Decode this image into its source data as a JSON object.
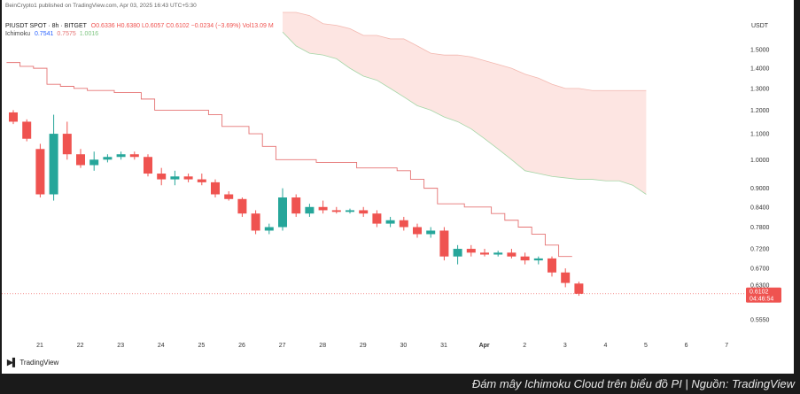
{
  "header": {
    "published": "BeinCrypto1 published on TradingView.com, Apr 03, 2025 16:43 UTC+5:30",
    "symbol": "PIUSDT SPOT · 8h · BITGET",
    "ohlc": "O0.6336  H0.6380  L0.6057  C0.6102  −0.0234 (−3.69%)  Vol13.09 M",
    "indicator_name": "Ichimoku",
    "indicator_vals": [
      "0.7541",
      "0.7575",
      "1.0016"
    ]
  },
  "currency": "USDT",
  "caption": "Đám mây Ichimoku Cloud trên biểu đồ PI | Nguồn: TradingView",
  "logo_text": "TradingView",
  "colors": {
    "up": "#26a69a",
    "down": "#ef5350",
    "baseline": "#e57373",
    "cloud": "#fde5e2",
    "cloud_lower": "#a5d6a7",
    "price_tag": "#ef5350"
  },
  "chart_data": {
    "type": "candlestick",
    "title": "PIUSDT SPOT · 8h · BITGET",
    "yscale": "log",
    "ylim": [
      0.53,
      1.72
    ],
    "y_ticks": [
      "1.5000",
      "1.4000",
      "1.3000",
      "1.2000",
      "1.1000",
      "1.0000",
      "0.9000",
      "0.8400",
      "0.7800",
      "0.7200",
      "0.6700",
      "0.6300",
      "0.5550"
    ],
    "x_ticks": [
      "21",
      "22",
      "23",
      "24",
      "25",
      "26",
      "27",
      "28",
      "29",
      "30",
      "31",
      "Apr",
      "2",
      "3",
      "4",
      "5",
      "6",
      "7"
    ],
    "last_price": "0.6102",
    "countdown": "04:46:54",
    "candles": [
      [
        1.19,
        1.2,
        1.14,
        1.15
      ],
      [
        1.15,
        1.16,
        1.07,
        1.08
      ],
      [
        1.04,
        1.06,
        0.87,
        0.88
      ],
      [
        0.88,
        1.18,
        0.86,
        1.1
      ],
      [
        1.1,
        1.15,
        1.0,
        1.02
      ],
      [
        1.02,
        1.04,
        0.97,
        0.98
      ],
      [
        0.98,
        1.03,
        0.96,
        1.0
      ],
      [
        1.0,
        1.02,
        0.99,
        1.01
      ],
      [
        1.01,
        1.03,
        1.0,
        1.02
      ],
      [
        1.02,
        1.03,
        1.0,
        1.01
      ],
      [
        1.01,
        1.02,
        0.94,
        0.95
      ],
      [
        0.95,
        0.97,
        0.91,
        0.93
      ],
      [
        0.93,
        0.96,
        0.91,
        0.94
      ],
      [
        0.94,
        0.95,
        0.92,
        0.93
      ],
      [
        0.93,
        0.95,
        0.91,
        0.92
      ],
      [
        0.92,
        0.93,
        0.87,
        0.88
      ],
      [
        0.88,
        0.89,
        0.86,
        0.865
      ],
      [
        0.865,
        0.87,
        0.81,
        0.82
      ],
      [
        0.82,
        0.83,
        0.76,
        0.77
      ],
      [
        0.77,
        0.79,
        0.76,
        0.78
      ],
      [
        0.78,
        0.9,
        0.77,
        0.87
      ],
      [
        0.87,
        0.88,
        0.81,
        0.82
      ],
      [
        0.82,
        0.85,
        0.81,
        0.84
      ],
      [
        0.84,
        0.86,
        0.82,
        0.83
      ],
      [
        0.83,
        0.84,
        0.82,
        0.825
      ],
      [
        0.825,
        0.835,
        0.82,
        0.83
      ],
      [
        0.83,
        0.84,
        0.81,
        0.82
      ],
      [
        0.82,
        0.83,
        0.78,
        0.79
      ],
      [
        0.79,
        0.81,
        0.78,
        0.8
      ],
      [
        0.8,
        0.81,
        0.77,
        0.78
      ],
      [
        0.78,
        0.79,
        0.75,
        0.76
      ],
      [
        0.76,
        0.78,
        0.75,
        0.77
      ],
      [
        0.77,
        0.78,
        0.69,
        0.7
      ],
      [
        0.7,
        0.73,
        0.68,
        0.72
      ],
      [
        0.72,
        0.73,
        0.7,
        0.71
      ],
      [
        0.71,
        0.72,
        0.7,
        0.705
      ],
      [
        0.705,
        0.715,
        0.7,
        0.71
      ],
      [
        0.71,
        0.72,
        0.695,
        0.7
      ],
      [
        0.7,
        0.71,
        0.68,
        0.69
      ],
      [
        0.69,
        0.7,
        0.68,
        0.695
      ],
      [
        0.695,
        0.7,
        0.65,
        0.66
      ],
      [
        0.66,
        0.67,
        0.625,
        0.635
      ],
      [
        0.6336,
        0.638,
        0.6057,
        0.6102
      ]
    ],
    "baseline": [
      1.43,
      1.41,
      1.4,
      1.32,
      1.31,
      1.3,
      1.29,
      1.29,
      1.28,
      1.28,
      1.25,
      1.2,
      1.2,
      1.2,
      1.2,
      1.18,
      1.13,
      1.13,
      1.1,
      1.05,
      1.0,
      1.0,
      1.0,
      0.99,
      0.99,
      0.99,
      0.97,
      0.97,
      0.97,
      0.96,
      0.93,
      0.9,
      0.85,
      0.85,
      0.84,
      0.84,
      0.82,
      0.8,
      0.78,
      0.76,
      0.73,
      0.7
    ],
    "cloud_upper": [
      1.72,
      1.72,
      1.7,
      1.65,
      1.64,
      1.62,
      1.58,
      1.58,
      1.56,
      1.56,
      1.52,
      1.48,
      1.47,
      1.47,
      1.46,
      1.44,
      1.42,
      1.4,
      1.37,
      1.35,
      1.32,
      1.3,
      1.3,
      1.29,
      1.29,
      1.29,
      1.29,
      1.29
    ],
    "cloud_lower": [
      1.6,
      1.52,
      1.48,
      1.47,
      1.45,
      1.4,
      1.36,
      1.34,
      1.3,
      1.26,
      1.22,
      1.2,
      1.17,
      1.15,
      1.12,
      1.08,
      1.04,
      1.0,
      0.96,
      0.95,
      0.94,
      0.935,
      0.93,
      0.93,
      0.925,
      0.925,
      0.91,
      0.88
    ]
  }
}
